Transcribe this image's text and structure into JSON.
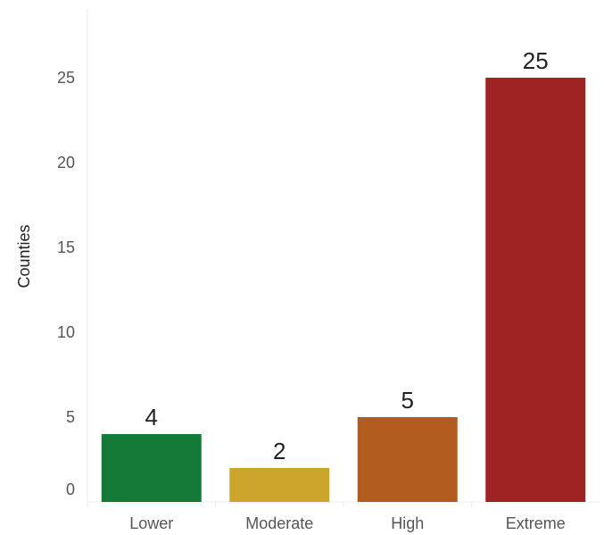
{
  "chart_data": {
    "type": "bar",
    "title": "",
    "xlabel": "",
    "ylabel": "Counties",
    "ylim": [
      0,
      28
    ],
    "yticks": [
      0,
      5,
      10,
      15,
      20,
      25
    ],
    "grid": false,
    "categories": [
      "Lower",
      "Moderate",
      "High",
      "Extreme"
    ],
    "values": [
      4,
      2,
      5,
      25
    ],
    "colors": [
      "#137b35",
      "#cea52b",
      "#b15c1d",
      "#9f2325"
    ],
    "data_labels": [
      "4",
      "2",
      "5",
      "25"
    ]
  }
}
